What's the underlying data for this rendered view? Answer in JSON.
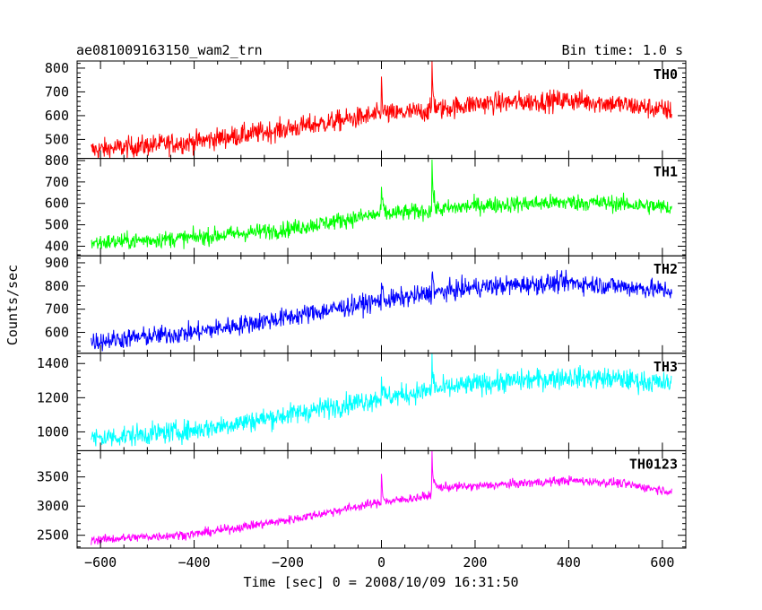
{
  "chart_data": {
    "type": "line",
    "title": "ae081009163150_wam2_trn",
    "bin_time_label": "Bin time: 1.0 s",
    "xlabel": "Time [sec] 0 = 2008/10/09 16:31:50",
    "ylabel": "Counts/sec",
    "xlim": [
      -650,
      650
    ],
    "x_ticks": [
      -600,
      -400,
      -200,
      0,
      200,
      400,
      600
    ],
    "x_range": [
      -620,
      620
    ],
    "grid": false,
    "panels": [
      {
        "name": "TH0",
        "color": "#ff0000",
        "ylim": [
          420,
          830
        ],
        "y_ticks": [
          500,
          600,
          700,
          800
        ],
        "noise": 32,
        "trend": [
          [
            -620,
            455
          ],
          [
            -400,
            490
          ],
          [
            -200,
            545
          ],
          [
            -20,
            600
          ],
          [
            100,
            620
          ],
          [
            200,
            650
          ],
          [
            400,
            665
          ],
          [
            500,
            650
          ],
          [
            620,
            620
          ]
        ],
        "spikes": [
          {
            "x": 0,
            "peak": 750
          },
          {
            "x": 108,
            "peak": 830
          }
        ]
      },
      {
        "name": "TH1",
        "color": "#00ff00",
        "ylim": [
          355,
          810
        ],
        "y_ticks": [
          400,
          500,
          600,
          700,
          800
        ],
        "noise": 28,
        "trend": [
          [
            -620,
            415
          ],
          [
            -400,
            440
          ],
          [
            -200,
            480
          ],
          [
            -20,
            545
          ],
          [
            100,
            565
          ],
          [
            200,
            590
          ],
          [
            400,
            605
          ],
          [
            500,
            600
          ],
          [
            620,
            580
          ]
        ],
        "spikes": [
          {
            "x": 0,
            "peak": 690
          },
          {
            "x": 108,
            "peak": 805
          }
        ]
      },
      {
        "name": "TH2",
        "color": "#0000ff",
        "ylim": [
          510,
          930
        ],
        "y_ticks": [
          600,
          700,
          800,
          900
        ],
        "noise": 30,
        "trend": [
          [
            -620,
            560
          ],
          [
            -400,
            600
          ],
          [
            -200,
            665
          ],
          [
            -20,
            730
          ],
          [
            100,
            765
          ],
          [
            200,
            795
          ],
          [
            400,
            815
          ],
          [
            500,
            800
          ],
          [
            620,
            780
          ]
        ],
        "spikes": [
          {
            "x": 0,
            "peak": 820
          },
          {
            "x": 108,
            "peak": 880
          }
        ]
      },
      {
        "name": "TH3",
        "color": "#00ffff",
        "ylim": [
          890,
          1460
        ],
        "y_ticks": [
          1000,
          1200,
          1400
        ],
        "noise": 45,
        "trend": [
          [
            -620,
            960
          ],
          [
            -400,
            1010
          ],
          [
            -200,
            1100
          ],
          [
            -20,
            1190
          ],
          [
            100,
            1240
          ],
          [
            200,
            1280
          ],
          [
            400,
            1320
          ],
          [
            500,
            1310
          ],
          [
            620,
            1280
          ]
        ],
        "spikes": [
          {
            "x": 0,
            "peak": 1320
          },
          {
            "x": 108,
            "peak": 1440
          }
        ]
      },
      {
        "name": "TH0123",
        "color": "#ff00ff",
        "ylim": [
          2280,
          3950
        ],
        "y_ticks": [
          2500,
          3000,
          3500
        ],
        "noise": 55,
        "trend": [
          [
            -620,
            2420
          ],
          [
            -400,
            2520
          ],
          [
            -200,
            2760
          ],
          [
            -20,
            3040
          ],
          [
            100,
            3170
          ],
          [
            115,
            3320
          ],
          [
            200,
            3340
          ],
          [
            400,
            3440
          ],
          [
            500,
            3400
          ],
          [
            620,
            3250
          ]
        ],
        "spikes": [
          {
            "x": 0,
            "peak": 3570
          },
          {
            "x": 108,
            "peak": 3900
          }
        ]
      }
    ]
  }
}
